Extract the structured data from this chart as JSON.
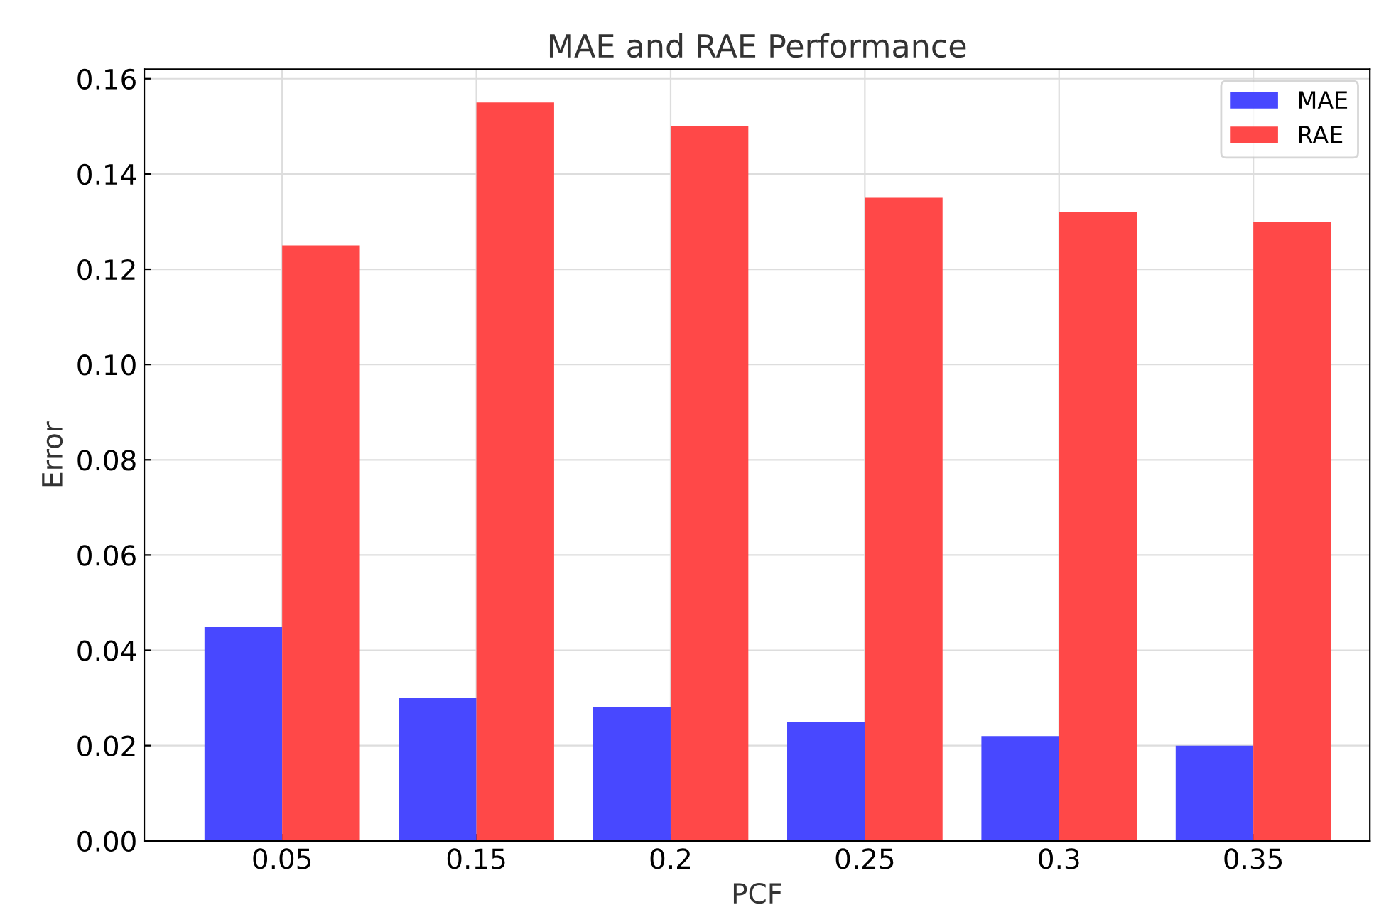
{
  "chart_data": {
    "type": "bar",
    "title": "MAE and RAE Performance",
    "xlabel": "PCF",
    "ylabel": "Error",
    "categories": [
      "0.05",
      "0.15",
      "0.2",
      "0.25",
      "0.3",
      "0.35"
    ],
    "series": [
      {
        "name": "MAE",
        "color": "#4848ff",
        "values": [
          0.045,
          0.03,
          0.028,
          0.025,
          0.022,
          0.02
        ]
      },
      {
        "name": "RAE",
        "color": "#ff4848",
        "values": [
          0.125,
          0.155,
          0.15,
          0.135,
          0.132,
          0.13
        ]
      }
    ],
    "ylim": [
      0,
      0.162
    ],
    "yticks": [
      {
        "value": 0,
        "label": "0.00"
      },
      {
        "value": 0.02,
        "label": "0.02"
      },
      {
        "value": 0.04,
        "label": "0.04"
      },
      {
        "value": 0.06,
        "label": "0.06"
      },
      {
        "value": 0.08,
        "label": "0.08"
      },
      {
        "value": 0.1,
        "label": "0.10"
      },
      {
        "value": 0.12,
        "label": "0.12"
      },
      {
        "value": 0.14,
        "label": "0.14"
      },
      {
        "value": 0.16,
        "label": "0.16"
      }
    ],
    "grid": true,
    "legend": "top right"
  }
}
